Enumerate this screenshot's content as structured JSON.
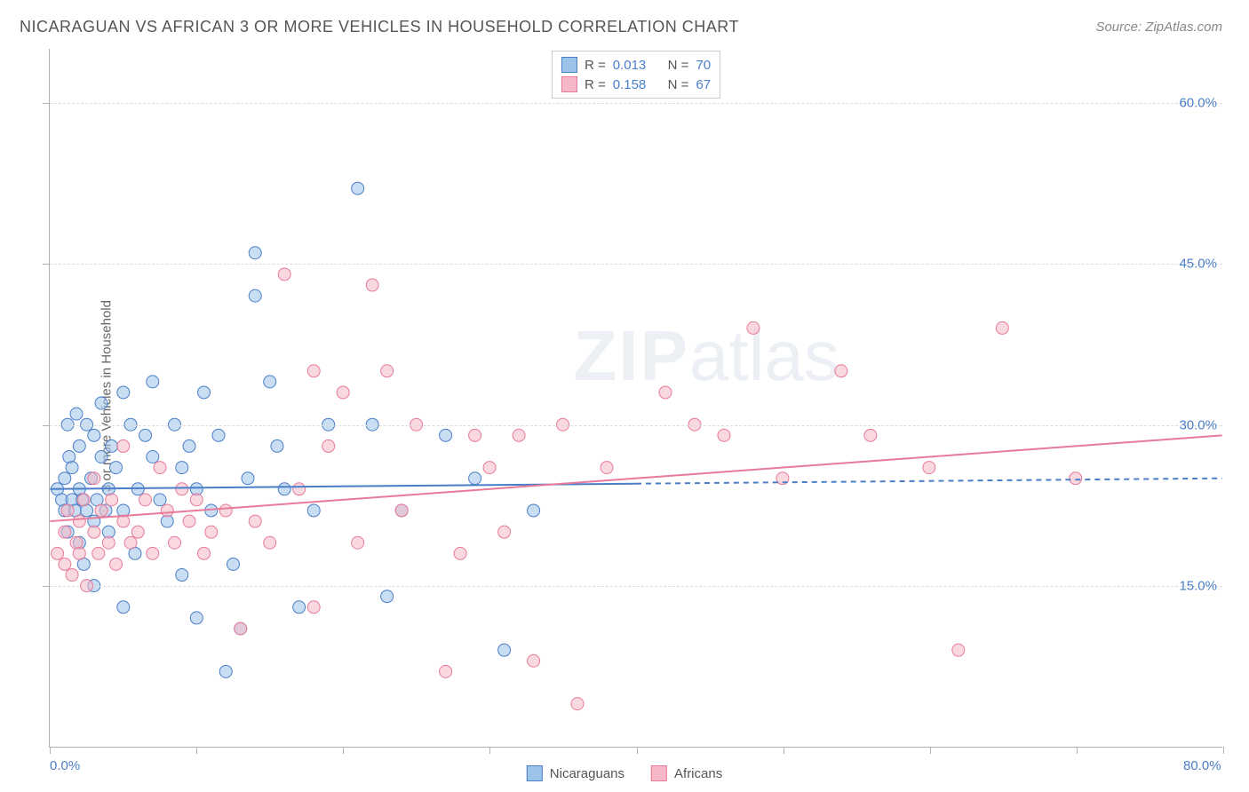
{
  "title": "NICARAGUAN VS AFRICAN 3 OR MORE VEHICLES IN HOUSEHOLD CORRELATION CHART",
  "source": "Source: ZipAtlas.com",
  "y_axis_label": "3 or more Vehicles in Household",
  "watermark_part1": "ZIP",
  "watermark_part2": "atlas",
  "chart": {
    "type": "scatter",
    "background_color": "#ffffff",
    "grid_color": "#dddddd",
    "axis_color": "#b0b0b0",
    "label_color": "#666666",
    "tick_label_color": "#4a7ec8",
    "xlim": [
      0,
      80
    ],
    "ylim": [
      0,
      65
    ],
    "x_ticks": [
      0,
      10,
      20,
      30,
      40,
      50,
      60,
      70,
      80
    ],
    "x_tick_labels": {
      "0": "0.0%",
      "80": "80.0%"
    },
    "y_gridlines": [
      15,
      30,
      45,
      60
    ],
    "y_tick_labels": {
      "15": "15.0%",
      "30": "30.0%",
      "45": "45.0%",
      "60": "60.0%"
    },
    "marker_radius": 7,
    "marker_opacity": 0.55,
    "line_width": 2
  },
  "series": [
    {
      "name": "Nicaraguans",
      "fill_color": "#9cc3e8",
      "stroke_color": "#4a7ec8",
      "R": "0.013",
      "N": "70",
      "trend": {
        "x1": 0,
        "y1": 24.0,
        "x2": 40,
        "y2": 24.5,
        "x2_ext": 80,
        "y2_ext": 25.0
      },
      "points": [
        [
          0.5,
          24
        ],
        [
          0.8,
          23
        ],
        [
          1,
          22
        ],
        [
          1,
          25
        ],
        [
          1.2,
          20
        ],
        [
          1.2,
          30
        ],
        [
          1.3,
          27
        ],
        [
          1.5,
          23
        ],
        [
          1.5,
          26
        ],
        [
          1.7,
          22
        ],
        [
          1.8,
          31
        ],
        [
          2,
          19
        ],
        [
          2,
          24
        ],
        [
          2,
          28
        ],
        [
          2.2,
          23
        ],
        [
          2.3,
          17
        ],
        [
          2.5,
          22
        ],
        [
          2.5,
          30
        ],
        [
          2.8,
          25
        ],
        [
          3,
          15
        ],
        [
          3,
          21
        ],
        [
          3,
          29
        ],
        [
          3.2,
          23
        ],
        [
          3.5,
          27
        ],
        [
          3.5,
          32
        ],
        [
          3.8,
          22
        ],
        [
          4,
          20
        ],
        [
          4,
          24
        ],
        [
          4.2,
          28
        ],
        [
          4.5,
          26
        ],
        [
          5,
          13
        ],
        [
          5,
          22
        ],
        [
          5,
          33
        ],
        [
          5.5,
          30
        ],
        [
          5.8,
          18
        ],
        [
          6,
          24
        ],
        [
          6.5,
          29
        ],
        [
          7,
          27
        ],
        [
          7,
          34
        ],
        [
          7.5,
          23
        ],
        [
          8,
          21
        ],
        [
          8.5,
          30
        ],
        [
          9,
          16
        ],
        [
          9,
          26
        ],
        [
          9.5,
          28
        ],
        [
          10,
          12
        ],
        [
          10,
          24
        ],
        [
          10.5,
          33
        ],
        [
          11,
          22
        ],
        [
          11.5,
          29
        ],
        [
          12,
          7
        ],
        [
          12.5,
          17
        ],
        [
          13,
          11
        ],
        [
          13.5,
          25
        ],
        [
          14,
          46
        ],
        [
          14,
          42
        ],
        [
          15,
          34
        ],
        [
          15.5,
          28
        ],
        [
          16,
          24
        ],
        [
          17,
          13
        ],
        [
          18,
          22
        ],
        [
          19,
          30
        ],
        [
          21,
          52
        ],
        [
          22,
          30
        ],
        [
          23,
          14
        ],
        [
          24,
          22
        ],
        [
          27,
          29
        ],
        [
          29,
          25
        ],
        [
          31,
          9
        ],
        [
          33,
          22
        ]
      ]
    },
    {
      "name": "Africans",
      "fill_color": "#f6b8c6",
      "stroke_color": "#e87a9a",
      "R": "0.158",
      "N": "67",
      "trend": {
        "x1": 0,
        "y1": 21.0,
        "x2": 80,
        "y2": 29.0
      },
      "points": [
        [
          0.5,
          18
        ],
        [
          1,
          20
        ],
        [
          1,
          17
        ],
        [
          1.2,
          22
        ],
        [
          1.5,
          16
        ],
        [
          1.8,
          19
        ],
        [
          2,
          21
        ],
        [
          2,
          18
        ],
        [
          2.3,
          23
        ],
        [
          2.5,
          15
        ],
        [
          3,
          20
        ],
        [
          3,
          25
        ],
        [
          3.3,
          18
        ],
        [
          3.5,
          22
        ],
        [
          4,
          19
        ],
        [
          4.2,
          23
        ],
        [
          4.5,
          17
        ],
        [
          5,
          21
        ],
        [
          5,
          28
        ],
        [
          5.5,
          19
        ],
        [
          6,
          20
        ],
        [
          6.5,
          23
        ],
        [
          7,
          18
        ],
        [
          7.5,
          26
        ],
        [
          8,
          22
        ],
        [
          8.5,
          19
        ],
        [
          9,
          24
        ],
        [
          9.5,
          21
        ],
        [
          10,
          23
        ],
        [
          10.5,
          18
        ],
        [
          11,
          20
        ],
        [
          12,
          22
        ],
        [
          13,
          11
        ],
        [
          14,
          21
        ],
        [
          15,
          19
        ],
        [
          16,
          44
        ],
        [
          17,
          24
        ],
        [
          18,
          35
        ],
        [
          18,
          13
        ],
        [
          19,
          28
        ],
        [
          20,
          33
        ],
        [
          21,
          19
        ],
        [
          22,
          43
        ],
        [
          23,
          35
        ],
        [
          24,
          22
        ],
        [
          25,
          30
        ],
        [
          27,
          7
        ],
        [
          28,
          18
        ],
        [
          29,
          29
        ],
        [
          30,
          26
        ],
        [
          31,
          20
        ],
        [
          32,
          29
        ],
        [
          33,
          8
        ],
        [
          35,
          30
        ],
        [
          36,
          4
        ],
        [
          38,
          26
        ],
        [
          42,
          33
        ],
        [
          44,
          30
        ],
        [
          46,
          29
        ],
        [
          48,
          39
        ],
        [
          50,
          25
        ],
        [
          54,
          35
        ],
        [
          56,
          29
        ],
        [
          60,
          26
        ],
        [
          62,
          9
        ],
        [
          65,
          39
        ],
        [
          70,
          25
        ]
      ]
    }
  ],
  "stats_labels": {
    "R": "R =",
    "N": "N ="
  },
  "bottom_legend": [
    "Nicaraguans",
    "Africans"
  ]
}
